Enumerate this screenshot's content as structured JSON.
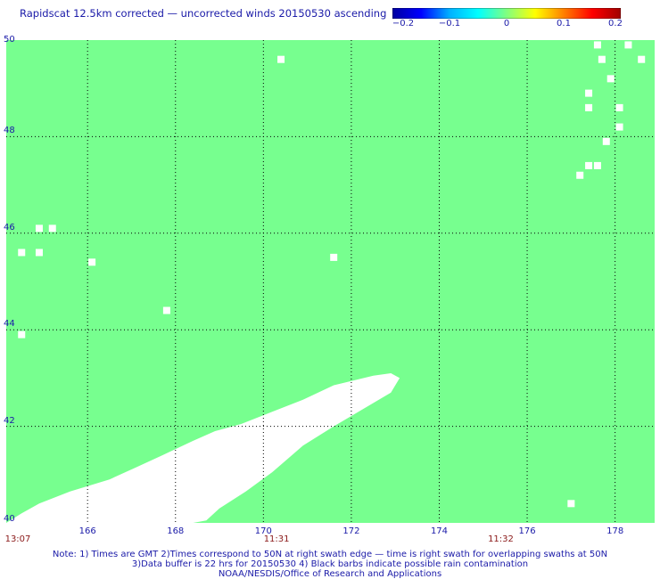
{
  "title": "Rapidscat 12.5km corrected — uncorrected winds 20150530 ascending",
  "colorbar": {
    "stops": [
      "#0000a0",
      "#0000ff",
      "#00b0ff",
      "#00ffff",
      "#80ff80",
      "#ffff00",
      "#ff8000",
      "#ff0000",
      "#a00000"
    ],
    "labels": [
      {
        "value": -0.2,
        "text": "−0.2"
      },
      {
        "value": -0.1,
        "text": "−0.1"
      },
      {
        "value": 0,
        "text": "0"
      },
      {
        "value": 0.1,
        "text": "0.1"
      },
      {
        "value": 0.2,
        "text": "0.2"
      }
    ],
    "range": [
      -0.2,
      0.2
    ]
  },
  "colors": {
    "field": "#77ff8f",
    "missing": "#ffffff",
    "grid": "#000000",
    "text": "#1a1aa8",
    "time_text": "#8b1a1a"
  },
  "map": {
    "lon_range": [
      164.15,
      178.9
    ],
    "lat_range": [
      40,
      50
    ],
    "lon_ticks": [
      166,
      168,
      170,
      172,
      174,
      176,
      178
    ],
    "lat_ticks": [
      40,
      42,
      44,
      46,
      48,
      50
    ],
    "lat_tick_labels": [
      "40",
      "42",
      "44",
      "46",
      "48",
      "50"
    ],
    "lon_tick_labels": [
      "166",
      "168",
      "170",
      "172",
      "174",
      "176",
      "178"
    ],
    "grid": true,
    "swath_gap": {
      "lon": [
        164.15,
        164.5,
        164.9,
        165.6,
        166.5,
        167.1,
        167.7,
        168.4,
        168.9,
        169.5,
        170.2,
        170.9,
        171.6,
        172.5,
        172.9,
        173.1,
        172.9,
        171.6,
        170.9,
        170.2,
        169.6,
        169.0,
        168.7,
        168.4,
        164.15
      ],
      "lat": [
        40.0,
        40.2,
        40.4,
        40.65,
        40.9,
        41.15,
        41.4,
        41.7,
        41.9,
        42.05,
        42.3,
        42.55,
        42.85,
        43.05,
        43.1,
        43.0,
        42.7,
        42.0,
        41.6,
        41.05,
        40.65,
        40.3,
        40.05,
        40.0,
        40.0
      ]
    },
    "missing_cells": [
      [
        164.5,
        43.9
      ],
      [
        164.5,
        45.6
      ],
      [
        164.9,
        45.6
      ],
      [
        164.9,
        46.1
      ],
      [
        165.2,
        46.1
      ],
      [
        166.1,
        45.4
      ],
      [
        167.8,
        44.4
      ],
      [
        170.4,
        49.6
      ],
      [
        171.6,
        45.5
      ],
      [
        177.0,
        40.4
      ],
      [
        177.2,
        47.2
      ],
      [
        177.4,
        47.4
      ],
      [
        177.6,
        47.4
      ],
      [
        177.4,
        48.9
      ],
      [
        177.4,
        48.6
      ],
      [
        177.8,
        47.9
      ],
      [
        178.1,
        48.6
      ],
      [
        178.1,
        48.2
      ],
      [
        177.7,
        49.6
      ],
      [
        177.9,
        49.2
      ],
      [
        178.3,
        49.9
      ],
      [
        178.6,
        49.6
      ],
      [
        177.6,
        49.9
      ]
    ]
  },
  "time_labels": [
    {
      "lon": 164.15,
      "text": "13:07"
    },
    {
      "lon": 170.3,
      "text": "11:31"
    },
    {
      "lon": 175.4,
      "text": "11:32"
    }
  ],
  "notes": [
    "Note: 1) Times are GMT 2)Times correspond to 50N at right swath edge — time is right swath for overlapping swaths at 50N",
    "3)Data buffer is 22 hrs for 20150530 4) Black barbs indicate possible rain contamination",
    "NOAA/NESDIS/Office of Research and Applications"
  ]
}
